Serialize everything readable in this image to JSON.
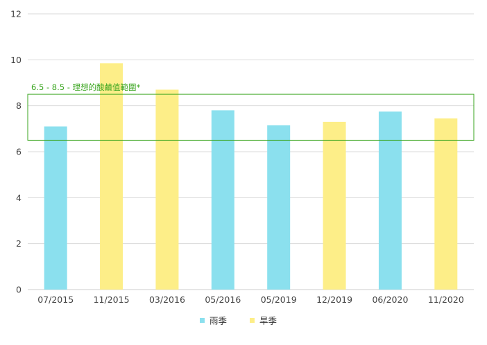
{
  "chart_data": {
    "type": "bar",
    "title": "",
    "xlabel": "",
    "ylabel": "",
    "ylim": [
      0,
      12
    ],
    "yticks": [
      0,
      2,
      4,
      6,
      8,
      10,
      12
    ],
    "grid": true,
    "legend_position": "bottom",
    "categories": [
      "07/2015",
      "11/2015",
      "03/2016",
      "05/2016",
      "05/2019",
      "12/2019",
      "06/2020",
      "11/2020"
    ],
    "values": [
      7.1,
      9.85,
      8.7,
      7.8,
      7.15,
      7.3,
      7.75,
      7.45
    ],
    "bar_series": [
      "rain",
      "dry",
      "dry",
      "rain",
      "rain",
      "dry",
      "rain",
      "dry"
    ],
    "series": [
      {
        "key": "rain",
        "name": "雨季",
        "color": "#8be0ee"
      },
      {
        "key": "dry",
        "name": "旱季",
        "color": "#fdee88"
      }
    ],
    "band": {
      "from": 6.5,
      "to": 8.5,
      "label": "6.5 - 8.5 - 理想的酸鹼值範圍*",
      "color": "#3aa51f"
    }
  }
}
